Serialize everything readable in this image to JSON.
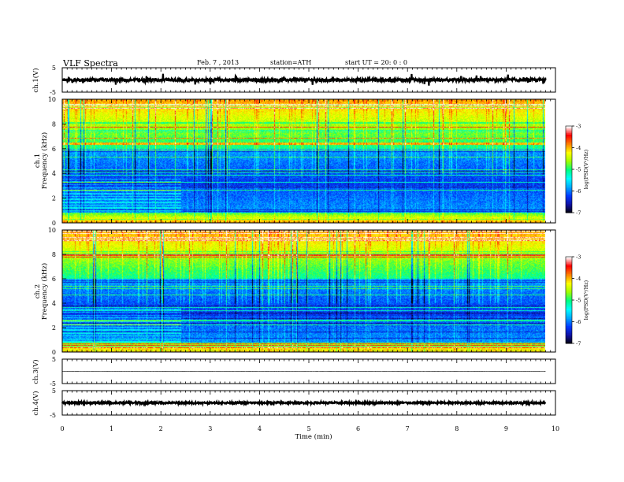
{
  "header": {
    "title": "VLF Spectra",
    "date": "Feb. 7  , 2013",
    "station": "station=ATH",
    "start": "start  UT =   20: 0  : 0"
  },
  "chart_data": [
    {
      "type": "line",
      "name": "waveform-ch1",
      "ylabel": "ch.1(V)",
      "ylim": [
        -5,
        5
      ],
      "yticks": [
        5,
        -5
      ],
      "xlim": [
        0,
        10
      ],
      "data_xrange": [
        0,
        9.8
      ],
      "baseline": 0,
      "noise_amplitude": 0.6,
      "spike_amplitude": 2.2
    },
    {
      "type": "heatmap",
      "name": "spectrogram-ch1",
      "ylabel": "ch.1\nFrequency  (kHz)",
      "ylim": [
        0,
        10
      ],
      "yticks": [
        0,
        2,
        4,
        6,
        8,
        10
      ],
      "xlim": [
        0,
        10
      ],
      "data_xrange": [
        0,
        9.8
      ],
      "colorbar": {
        "label": "log(PSD(V²/Hz)",
        "range": [
          -7,
          -3
        ],
        "ticks": [
          -3,
          -4,
          -5,
          -6,
          -7
        ]
      }
    },
    {
      "type": "heatmap",
      "name": "spectrogram-ch2",
      "ylabel": "ch.2\nFrequency  (kHz)",
      "ylim": [
        0,
        10
      ],
      "yticks": [
        0,
        2,
        4,
        6,
        8,
        10
      ],
      "xlim": [
        0,
        10
      ],
      "data_xrange": [
        0,
        9.8
      ],
      "colorbar": {
        "label": "log(PSD(V²/Hz)",
        "range": [
          -7,
          -3
        ],
        "ticks": [
          -3,
          -4,
          -5,
          -6,
          -7
        ]
      }
    },
    {
      "type": "line",
      "name": "waveform-ch3",
      "ylabel": "ch.3(V)",
      "ylim": [
        -5,
        5
      ],
      "yticks": [
        5,
        -5
      ],
      "xlim": [
        0,
        10
      ],
      "data_xrange": [
        0,
        9.8
      ],
      "baseline": 0,
      "noise_amplitude": 0.03,
      "spike_amplitude": 0
    },
    {
      "type": "line",
      "name": "waveform-ch4",
      "ylabel": "ch.4(V)",
      "ylim": [
        -5,
        5
      ],
      "yticks": [
        5,
        -5
      ],
      "xlim": [
        0,
        10
      ],
      "data_xrange": [
        0,
        9.8
      ],
      "baseline": 0,
      "noise_amplitude": 0.35,
      "spike_amplitude": 0
    }
  ],
  "xaxis": {
    "label": "Time  (min)",
    "ticks": [
      "0",
      "1",
      "2",
      "3",
      "4",
      "5",
      "6",
      "7",
      "8",
      "9",
      "10"
    ]
  },
  "colors": {
    "colormap": [
      "#000000",
      "#1010a0",
      "#0038ff",
      "#00a8ff",
      "#00ffff",
      "#00ff80",
      "#a0ff00",
      "#ffff00",
      "#ff8000",
      "#ff0000",
      "#ffffff"
    ],
    "line": "#000000"
  }
}
